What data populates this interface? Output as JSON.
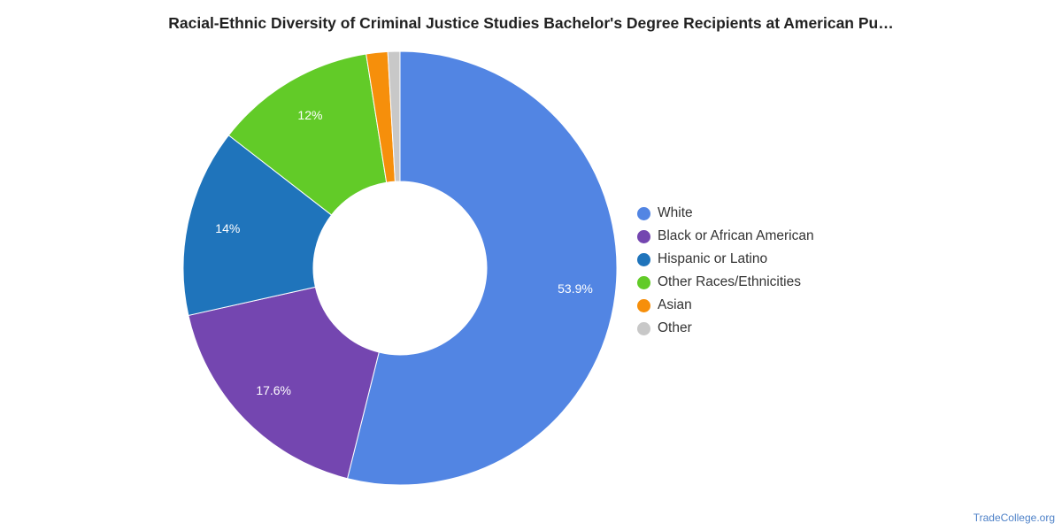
{
  "chart_data": {
    "type": "pie",
    "title": "Racial-Ethnic Diversity of Criminal Justice Studies Bachelor's Degree Recipients at American Pu…",
    "donut": true,
    "categories": [
      "White",
      "Black or African American",
      "Hispanic or Latino",
      "Other Races/Ethnicities",
      "Asian",
      "Other"
    ],
    "values": [
      53.9,
      17.6,
      14.0,
      12.0,
      1.6,
      0.9
    ],
    "data_labels": [
      "53.9%",
      "17.6%",
      "14%",
      "12%",
      "",
      ""
    ],
    "colors": [
      "#5285e3",
      "#7446b0",
      "#1f74bb",
      "#62cb28",
      "#f68f0b",
      "#c8c8c8"
    ],
    "legend_position": "right"
  },
  "source_label": "TradeCollege.org"
}
